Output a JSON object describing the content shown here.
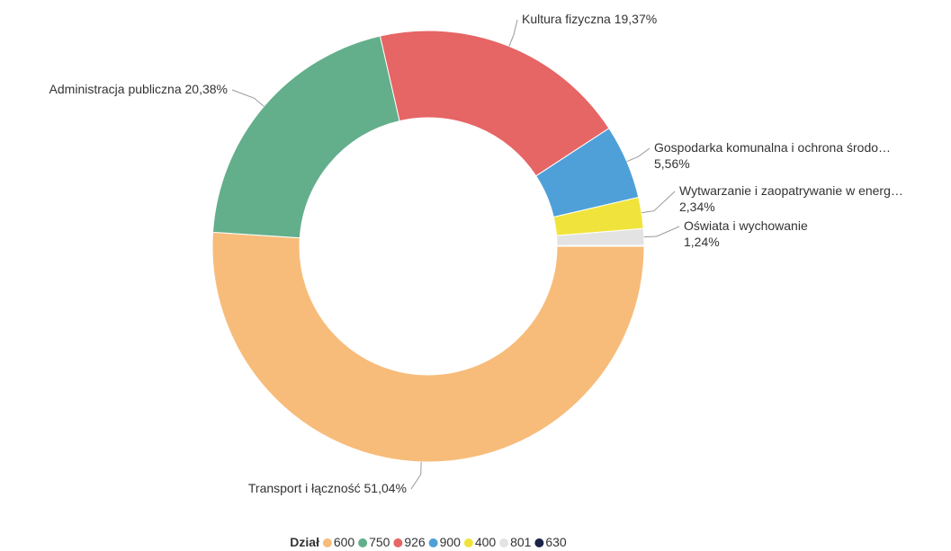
{
  "chart_data": {
    "type": "donut",
    "categories": [
      "600",
      "750",
      "926",
      "900",
      "400",
      "801",
      "630"
    ],
    "segment_names": [
      "Transport i łączność",
      "Administracja publiczna",
      "Kultura fizyczna",
      "Gospodarka komunalna i ochrona środo…",
      "Wytwarzanie i zaopatrywanie w energ…",
      "Oświata i wychowanie",
      null
    ],
    "values": [
      51.04,
      20.38,
      19.37,
      5.56,
      2.34,
      1.24,
      0.07
    ],
    "value_labels": [
      "51,04%",
      "20,38%",
      "19,37%",
      "5,56%",
      "2,34%",
      "1,24%",
      null
    ],
    "colors": [
      "#f7bc7a",
      "#63ae8b",
      "#e66565",
      "#4fa0d8",
      "#f0e43c",
      "#e3e3e3",
      "#1c2447"
    ],
    "legend_title": "Dział"
  }
}
